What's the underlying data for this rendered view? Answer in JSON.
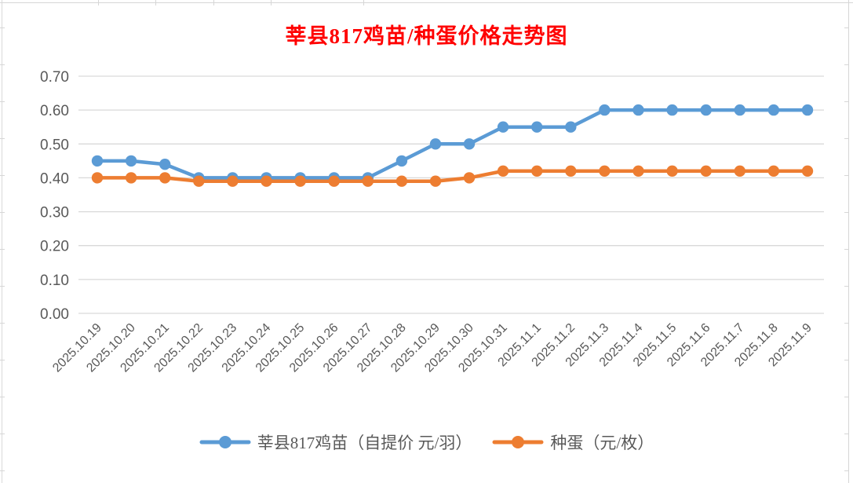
{
  "chart_data": {
    "type": "line",
    "title": "莘县817鸡苗/种蛋价格走势图",
    "title_color": "#FF0000",
    "categories": [
      "2025.10.19",
      "2025.10.20",
      "2025.10.21",
      "2025.10.22",
      "2025.10.23",
      "2025.10.24",
      "2025.10.25",
      "2025.10.26",
      "2025.10.27",
      "2025.10.28",
      "2025.10.29",
      "2025.10.30",
      "2025.10.31",
      "2025.11.1",
      "2025.11.2",
      "2025.11.3",
      "2025.11.4",
      "2025.11.5",
      "2025.11.6",
      "2025.11.7",
      "2025.11.8",
      "2025.11.9"
    ],
    "series": [
      {
        "name": "莘县817鸡苗（自提价 元/羽）",
        "color": "#5B9BD5",
        "values": [
          0.45,
          0.45,
          0.44,
          0.4,
          0.4,
          0.4,
          0.4,
          0.4,
          0.4,
          0.45,
          0.5,
          0.5,
          0.55,
          0.55,
          0.55,
          0.6,
          0.6,
          0.6,
          0.6,
          0.6,
          0.6,
          0.6
        ]
      },
      {
        "name": "种蛋（元/枚）",
        "color": "#ED7D31",
        "values": [
          0.4,
          0.4,
          0.4,
          0.39,
          0.39,
          0.39,
          0.39,
          0.39,
          0.39,
          0.39,
          0.39,
          0.4,
          0.42,
          0.42,
          0.42,
          0.42,
          0.42,
          0.42,
          0.42,
          0.42,
          0.42,
          0.42
        ]
      }
    ],
    "xlabel": "",
    "ylabel": "",
    "ylim": [
      0.0,
      0.7
    ],
    "ytick_step": 0.1,
    "ytick_labels": [
      "0.00",
      "0.10",
      "0.20",
      "0.30",
      "0.40",
      "0.50",
      "0.60",
      "0.70"
    ],
    "grid": true,
    "gridline_color": "#D9D9D9",
    "axis_label_color": "#595959",
    "legend_position": "bottom"
  }
}
